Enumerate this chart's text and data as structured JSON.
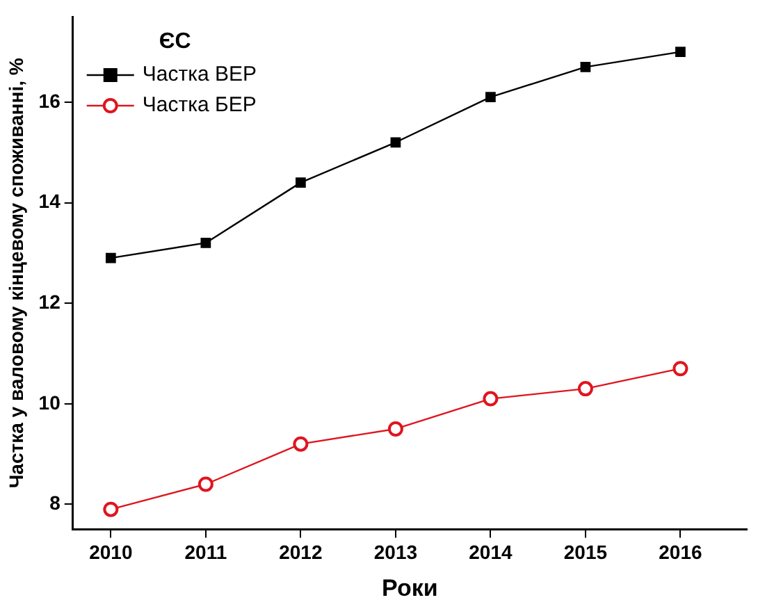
{
  "chart_data": {
    "type": "line",
    "xlabel": "Роки",
    "ylabel": "Частка у валовому кінцевому споживанні, %",
    "legend_title": "ЄС",
    "legend": "top left",
    "grid": false,
    "x": [
      2010,
      2011,
      2012,
      2013,
      2014,
      2015,
      2016
    ],
    "xlim": [
      2009.6,
      2016.7
    ],
    "xticks": [
      2010,
      2011,
      2012,
      2013,
      2014,
      2015,
      2016
    ],
    "ylim": [
      7.5,
      17.7
    ],
    "yticks": [
      8,
      10,
      12,
      14,
      16
    ],
    "series": [
      {
        "name": "Частка ВЕР",
        "color": "#000000",
        "marker": "square",
        "values": [
          12.9,
          13.2,
          14.4,
          15.2,
          16.1,
          16.7,
          17.0
        ]
      },
      {
        "name": "Частка БЕР",
        "color": "#e0141e",
        "marker": "circle",
        "values": [
          7.9,
          8.4,
          9.2,
          9.5,
          10.1,
          10.3,
          10.7
        ]
      }
    ]
  }
}
